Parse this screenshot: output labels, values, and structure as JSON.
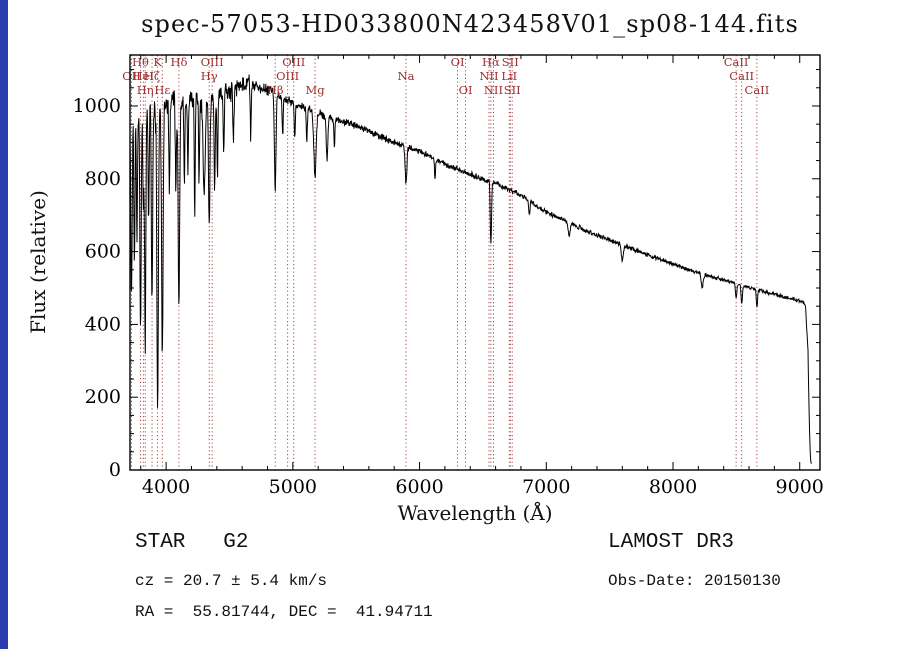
{
  "title": "spec-57053-HD033800N423458V01_sp08-144.fits",
  "info": {
    "class_line": "STAR   G2",
    "survey_line": "LAMOST DR3",
    "cz_line": "cz = 20.7 ± 5.4 km/s",
    "obs_line": "Obs-Date: 20150130",
    "radec_line": "RA =  55.81744, DEC =  41.94711"
  },
  "chart_data": {
    "type": "line",
    "title": "spec-57053-HD033800N423458V01_sp08-144.fits",
    "xlabel": "Wavelength (Å)",
    "ylabel": "Flux (relative)",
    "xlim": [
      3715,
      9160
    ],
    "ylim": [
      0,
      1140
    ],
    "xticks": [
      4000,
      5000,
      6000,
      7000,
      8000,
      9000
    ],
    "yticks": [
      0,
      200,
      400,
      600,
      800,
      1000
    ],
    "x_minor_step": 200,
    "y_minor_step": 50,
    "grid": false,
    "line_color": "#000000",
    "marker_color": "#a03030",
    "spectrum_end": 9095,
    "spectral_lines": [
      {
        "wavelength": 3727,
        "label": "OII",
        "row": 2
      },
      {
        "wavelength": 3798,
        "label": "Hθ",
        "row": 1
      },
      {
        "wavelength": 3820,
        "label": "HeI",
        "row": 2
      },
      {
        "wavelength": 3835,
        "label": "Hη",
        "row": 3
      },
      {
        "wavelength": 3889,
        "label": "Hζ",
        "row": 2
      },
      {
        "wavelength": 3933,
        "label": "K",
        "row": 1
      },
      {
        "wavelength": 3970,
        "label": "Hε",
        "row": 3
      },
      {
        "wavelength": 4101,
        "label": "Hδ",
        "row": 1
      },
      {
        "wavelength": 4340,
        "label": "Hγ",
        "row": 2
      },
      {
        "wavelength": 4363,
        "label": "OIII",
        "row": 1
      },
      {
        "wavelength": 4861,
        "label": "Hβ",
        "row": 3
      },
      {
        "wavelength": 4959,
        "label": "OIII",
        "row": 2
      },
      {
        "wavelength": 5007,
        "label": "OIII",
        "row": 1
      },
      {
        "wavelength": 5175,
        "label": "Mg",
        "row": 3
      },
      {
        "wavelength": 5893,
        "label": "Na",
        "row": 2
      },
      {
        "wavelength": 6300,
        "label": "OI",
        "row": 1
      },
      {
        "wavelength": 6363,
        "label": "OI",
        "row": 3
      },
      {
        "wavelength": 6548,
        "label": "NII",
        "row": 2
      },
      {
        "wavelength": 6563,
        "label": "Hα",
        "row": 1
      },
      {
        "wavelength": 6583,
        "label": "NII",
        "row": 3
      },
      {
        "wavelength": 6708,
        "label": "LiI",
        "row": 2
      },
      {
        "wavelength": 6716,
        "label": "SII",
        "row": 1
      },
      {
        "wavelength": 6731,
        "label": "SII",
        "row": 3
      },
      {
        "wavelength": 8498,
        "label": "CaII",
        "row": 1
      },
      {
        "wavelength": 8542,
        "label": "CaII",
        "row": 2
      },
      {
        "wavelength": 8662,
        "label": "CaII",
        "row": 3
      }
    ],
    "continuum": [
      [
        3712,
        940
      ],
      [
        3760,
        985
      ],
      [
        3850,
        1000
      ],
      [
        3950,
        1012
      ],
      [
        4050,
        1016
      ],
      [
        4150,
        1022
      ],
      [
        4250,
        1028
      ],
      [
        4350,
        1032
      ],
      [
        4450,
        1040
      ],
      [
        4550,
        1050
      ],
      [
        4650,
        1068
      ],
      [
        4750,
        1050
      ],
      [
        4850,
        1040
      ],
      [
        4950,
        1018
      ],
      [
        5050,
        1000
      ],
      [
        5150,
        990
      ],
      [
        5250,
        973
      ],
      [
        5350,
        962
      ],
      [
        5450,
        952
      ],
      [
        5550,
        938
      ],
      [
        5650,
        922
      ],
      [
        5750,
        906
      ],
      [
        5850,
        893
      ],
      [
        5950,
        882
      ],
      [
        6050,
        868
      ],
      [
        6150,
        850
      ],
      [
        6250,
        833
      ],
      [
        6350,
        818
      ],
      [
        6450,
        806
      ],
      [
        6550,
        793
      ],
      [
        6650,
        780
      ],
      [
        6750,
        763
      ],
      [
        6850,
        745
      ],
      [
        6950,
        719
      ],
      [
        7050,
        701
      ],
      [
        7150,
        685
      ],
      [
        7250,
        668
      ],
      [
        7350,
        652
      ],
      [
        7450,
        638
      ],
      [
        7550,
        625
      ],
      [
        7650,
        612
      ],
      [
        7750,
        598
      ],
      [
        7850,
        585
      ],
      [
        7950,
        572
      ],
      [
        8050,
        560
      ],
      [
        8150,
        548
      ],
      [
        8250,
        537
      ],
      [
        8350,
        527
      ],
      [
        8450,
        517
      ],
      [
        8550,
        507
      ],
      [
        8650,
        497
      ],
      [
        8750,
        488
      ],
      [
        8850,
        478
      ],
      [
        8950,
        470
      ],
      [
        9020,
        462
      ],
      [
        9045,
        454
      ],
      [
        9065,
        330
      ],
      [
        9078,
        90
      ],
      [
        9088,
        20
      ],
      [
        9095,
        16
      ]
    ],
    "absorption_lines": [
      [
        3727,
        480,
        5
      ],
      [
        3750,
        420,
        4
      ],
      [
        3770,
        360,
        4
      ],
      [
        3798,
        600,
        5
      ],
      [
        3820,
        280,
        4
      ],
      [
        3835,
        640,
        5
      ],
      [
        3862,
        330,
        4
      ],
      [
        3889,
        540,
        5
      ],
      [
        3933,
        830,
        6
      ],
      [
        3970,
        690,
        6
      ],
      [
        4026,
        250,
        4
      ],
      [
        4077,
        260,
        4
      ],
      [
        4101,
        550,
        6
      ],
      [
        4144,
        230,
        4
      ],
      [
        4172,
        200,
        4
      ],
      [
        4226,
        320,
        4
      ],
      [
        4260,
        230,
        4
      ],
      [
        4300,
        280,
        8
      ],
      [
        4340,
        350,
        6
      ],
      [
        4383,
        280,
        4
      ],
      [
        4405,
        230,
        4
      ],
      [
        4455,
        170,
        4
      ],
      [
        4531,
        150,
        4
      ],
      [
        4668,
        140,
        4
      ],
      [
        4861,
        270,
        6
      ],
      [
        4920,
        110,
        4
      ],
      [
        5015,
        100,
        4
      ],
      [
        5110,
        90,
        4
      ],
      [
        5175,
        180,
        9
      ],
      [
        5270,
        120,
        6
      ],
      [
        5328,
        80,
        4
      ],
      [
        5893,
        100,
        7
      ],
      [
        6122,
        55,
        4
      ],
      [
        6563,
        170,
        5
      ],
      [
        6867,
        40,
        5
      ],
      [
        7180,
        35,
        8
      ],
      [
        7600,
        45,
        8
      ],
      [
        8230,
        35,
        8
      ],
      [
        8498,
        42,
        5
      ],
      [
        8542,
        52,
        5
      ],
      [
        8662,
        48,
        5
      ]
    ],
    "noise_profile": [
      [
        3715,
        26
      ],
      [
        4000,
        26
      ],
      [
        4300,
        22
      ],
      [
        4700,
        18
      ],
      [
        5000,
        13
      ],
      [
        5400,
        10
      ],
      [
        6000,
        8
      ],
      [
        6800,
        7
      ],
      [
        7600,
        6
      ],
      [
        9160,
        5
      ]
    ]
  }
}
